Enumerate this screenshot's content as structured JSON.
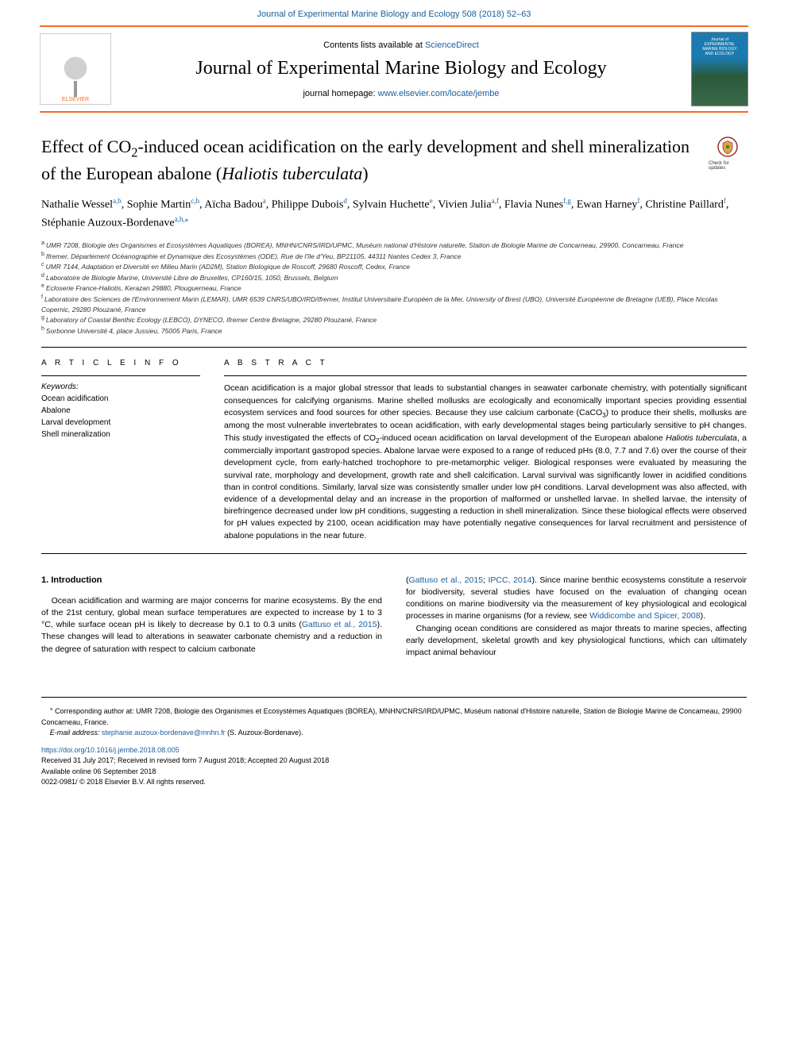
{
  "header": {
    "top_citation": "Journal of Experimental Marine Biology and Ecology 508 (2018) 52–63",
    "contents_prefix": "Contents lists available at ",
    "contents_link": "ScienceDirect",
    "journal_title": "Journal of Experimental Marine Biology and Ecology",
    "homepage_prefix": "journal homepage: ",
    "homepage_link": "www.elsevier.com/locate/jembe",
    "elsevier_label": "ELSEVIER",
    "cover_line1": "Journal of",
    "cover_line2": "EXPERIMENTAL",
    "cover_line3": "MARINE BIOLOGY",
    "cover_line4": "AND ECOLOGY"
  },
  "article": {
    "title_pre": "Effect of CO",
    "title_sub": "2",
    "title_mid": "-induced ocean acidification on the early development and shell mineralization of the European abalone (",
    "title_italic": "Haliotis tuberculata",
    "title_post": ")",
    "check_updates_label": "Check for updates",
    "authors_html": "Nathalie Wessel<sup><a>a</a>,<a>b</a></sup>, Sophie Martin<sup><a>c</a>,<a>h</a></sup>, Aïcha Badou<sup><a>a</a></sup>, Philippe Dubois<sup><a>d</a></sup>, Sylvain Huchette<sup><a>e</a></sup>, Vivien Julia<sup><a>a</a>,<a>f</a></sup>, Flavia Nunes<sup><a>f</a>,<a>g</a></sup>, Ewan Harney<sup><a>f</a></sup>, Christine Paillard<sup><a>f</a></sup>, Stéphanie Auzoux-Bordenave<sup><a>a</a>,<a>h</a>,<a>⁎</a></sup>",
    "affiliations": [
      {
        "key": "a",
        "text": "UMR 7208, Biologie des Organismes et Ecosystèmes Aquatiques (BOREA), MNHN/CNRS/IRD/UPMC, Muséum national d'Histoire naturelle, Station de Biologie Marine de Concarneau, 29900, Concarneau, France"
      },
      {
        "key": "b",
        "text": "Ifremer, Département Océanographie et Dynamique des Ecosystèmes (ODE), Rue de l'île d'Yeu, BP21105, 44311 Nantes Cedex 3, France"
      },
      {
        "key": "c",
        "text": "UMR 7144, Adaptation et Diversité en Milieu Marin (AD2M), Station Biologique de Roscoff, 29680 Roscoff, Cedex, France"
      },
      {
        "key": "d",
        "text": "Laboratoire de Biologie Marine, Université Libre de Bruxelles, CP160/15, 1050, Brussels, Belgium"
      },
      {
        "key": "e",
        "text": "Ecloserie France-Haliotis, Kerazan 29880, Plouguerneau, France"
      },
      {
        "key": "f",
        "text": "Laboratoire des Sciences de l'Environnement Marin (LEMAR), UMR 6539 CNRS/UBO/IRD/Ifremer, Institut Universitaire Européen de la Mer, University of Brest (UBO), Université Européenne de Bretagne (UEB), Place Nicolas Copernic, 29280 Plouzané, France"
      },
      {
        "key": "g",
        "text": "Laboratory of Coastal Benthic Ecology (LEBCO), DYNECO, Ifremer Centre Bretagne, 29280 Plouzané, France"
      },
      {
        "key": "h",
        "text": "Sorbonne Université 4, place Jussieu, 75005 Paris, France"
      }
    ]
  },
  "info": {
    "article_info_label": "A R T I C L E  I N F O",
    "abstract_label": "A B S T R A C T",
    "keywords_label": "Keywords:",
    "keywords": [
      "Ocean acidification",
      "Abalone",
      "Larval development",
      "Shell mineralization"
    ],
    "abstract_html": "Ocean acidification is a major global stressor that leads to substantial changes in seawater carbonate chemistry, with potentially significant consequences for calcifying organisms. Marine shelled mollusks are ecologically and economically important species providing essential ecosystem services and food sources for other species. Because they use calcium carbonate (CaCO<sub>3</sub>) to produce their shells, mollusks are among the most vulnerable invertebrates to ocean acidification, with early developmental stages being particularly sensitive to pH changes. This study investigated the effects of CO<sub>2</sub>-induced ocean acidification on larval development of the European abalone <i>Haliotis tuberculata</i>, a commercially important gastropod species. Abalone larvae were exposed to a range of reduced pHs (8.0, 7.7 and 7.6) over the course of their development cycle, from early-hatched trochophore to pre-metamorphic veliger. Biological responses were evaluated by measuring the survival rate, morphology and development, growth rate and shell calcification. Larval survival was significantly lower in acidified conditions than in control conditions. Similarly, larval size was consistently smaller under low pH conditions. Larval development was also affected, with evidence of a developmental delay and an increase in the proportion of malformed or unshelled larvae. In shelled larvae, the intensity of birefringence decreased under low pH conditions, suggesting a reduction in shell mineralization. Since these biological effects were observed for pH values expected by 2100, ocean acidification may have potentially negative consequences for larval recruitment and persistence of abalone populations in the near future."
  },
  "body": {
    "intro_heading": "1. Introduction",
    "col1_p1": "Ocean acidification and warming are major concerns for marine ecosystems. By the end of the 21st century, global mean surface temperatures are expected to increase by 1 to 3 °C, while surface ocean pH is likely to decrease by 0.1 to 0.3 units (<span class=\"cite\">Gattuso et al., 2015</span>). These changes will lead to alterations in seawater carbonate chemistry and a reduction in the degree of saturation with respect to calcium carbonate",
    "col2_p1": "(<span class=\"cite\">Gattuso et al., 2015</span>; <span class=\"cite\">IPCC, 2014</span>). Since marine benthic ecosystems constitute a reservoir for biodiversity, several studies have focused on the evaluation of changing ocean conditions on marine biodiversity via the measurement of key physiological and ecological processes in marine organisms (for a review, see <span class=\"cite\">Widdicombe and Spicer, 2008</span>).",
    "col2_p2": "Changing ocean conditions are considered as major threats to marine species, affecting early development, skeletal growth and key physiological functions, which can ultimately impact animal behaviour"
  },
  "footer": {
    "corr_marker": "⁎",
    "corr_text": " Corresponding author at: UMR 7208, Biologie des Organismes et Ecosystèmes Aquatiques (BOREA), MNHN/CNRS/IRD/UPMC, Muséum national d'Histoire naturelle, Station de Biologie Marine de Concarneau, 29900 Concarneau, France.",
    "email_label": "E-mail address: ",
    "email": "stephanie.auzoux-bordenave@mnhn.fr",
    "email_suffix": " (S. Auzoux-Bordenave).",
    "doi": "https://doi.org/10.1016/j.jembe.2018.08.005",
    "received": "Received 31 July 2017; Received in revised form 7 August 2018; Accepted 20 August 2018",
    "available": "Available online 06 September 2018",
    "copyright": "0022-0981/ © 2018 Elsevier B.V. All rights reserved."
  },
  "colors": {
    "link": "#1a5d9e",
    "accent": "#f26c2a",
    "text": "#000000",
    "background": "#ffffff"
  }
}
